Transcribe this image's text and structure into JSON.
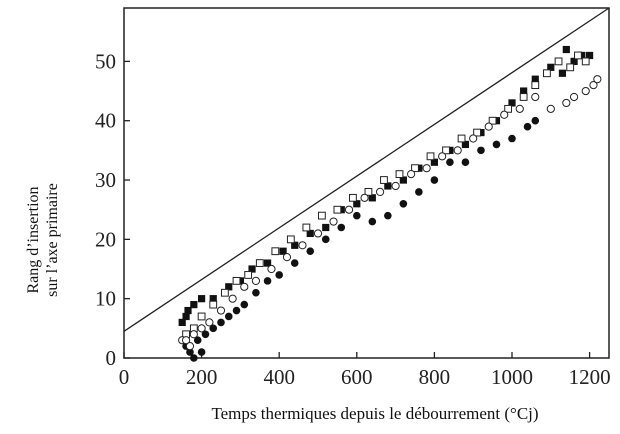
{
  "chart_data": {
    "type": "scatter",
    "xlabel": "Temps thermiques depuis le débourrement (°Cj)",
    "ylabel_lines": [
      "Rang d’insertion",
      "sur l’axe primaire"
    ],
    "xlim": [
      0,
      1250
    ],
    "ylim": [
      0,
      59
    ],
    "xticks": [
      "0",
      "200",
      "400",
      "600",
      "800",
      "1000",
      "1200"
    ],
    "yticks": [
      "0",
      "10",
      "20",
      "30",
      "40",
      "50"
    ],
    "grid": false,
    "line": {
      "x": [
        0,
        1250
      ],
      "y": [
        4.5,
        59
      ]
    },
    "series": [
      {
        "marker": "filled-square",
        "points": [
          [
            150,
            6
          ],
          [
            160,
            7
          ],
          [
            165,
            8
          ],
          [
            180,
            9
          ],
          [
            200,
            10
          ],
          [
            230,
            10
          ],
          [
            270,
            12
          ],
          [
            300,
            13
          ],
          [
            330,
            15
          ],
          [
            370,
            16
          ],
          [
            410,
            18
          ],
          [
            440,
            19
          ],
          [
            480,
            21
          ],
          [
            520,
            22
          ],
          [
            560,
            25
          ],
          [
            600,
            26
          ],
          [
            640,
            27
          ],
          [
            680,
            29
          ],
          [
            720,
            30
          ],
          [
            760,
            32
          ],
          [
            800,
            33
          ],
          [
            840,
            35
          ],
          [
            880,
            36
          ],
          [
            920,
            38
          ],
          [
            960,
            40
          ],
          [
            1000,
            43
          ],
          [
            1030,
            45
          ],
          [
            1060,
            47
          ],
          [
            1100,
            49
          ],
          [
            1130,
            48
          ],
          [
            1140,
            52
          ],
          [
            1160,
            50
          ],
          [
            1180,
            51
          ],
          [
            1200,
            51
          ]
        ]
      },
      {
        "marker": "filled-circle",
        "points": [
          [
            160,
            2
          ],
          [
            170,
            1
          ],
          [
            180,
            0
          ],
          [
            190,
            3
          ],
          [
            200,
            1
          ],
          [
            210,
            4
          ],
          [
            230,
            5
          ],
          [
            250,
            6
          ],
          [
            270,
            7
          ],
          [
            290,
            8
          ],
          [
            310,
            9
          ],
          [
            340,
            11
          ],
          [
            370,
            13
          ],
          [
            400,
            14
          ],
          [
            440,
            16
          ],
          [
            480,
            18
          ],
          [
            520,
            20
          ],
          [
            560,
            22
          ],
          [
            600,
            24
          ],
          [
            640,
            23
          ],
          [
            680,
            24
          ],
          [
            720,
            26
          ],
          [
            760,
            28
          ],
          [
            800,
            30
          ],
          [
            840,
            33
          ],
          [
            880,
            33
          ],
          [
            920,
            35
          ],
          [
            960,
            36
          ],
          [
            1000,
            37
          ],
          [
            1040,
            39
          ],
          [
            1060,
            40
          ]
        ]
      },
      {
        "marker": "open-square",
        "points": [
          [
            160,
            4
          ],
          [
            180,
            5
          ],
          [
            200,
            7
          ],
          [
            230,
            9
          ],
          [
            260,
            11
          ],
          [
            290,
            13
          ],
          [
            320,
            14
          ],
          [
            350,
            16
          ],
          [
            390,
            18
          ],
          [
            430,
            20
          ],
          [
            470,
            22
          ],
          [
            510,
            24
          ],
          [
            550,
            25
          ],
          [
            590,
            27
          ],
          [
            630,
            28
          ],
          [
            670,
            30
          ],
          [
            710,
            31
          ],
          [
            750,
            32
          ],
          [
            790,
            34
          ],
          [
            830,
            35
          ],
          [
            870,
            37
          ],
          [
            910,
            38
          ],
          [
            950,
            40
          ],
          [
            990,
            42
          ],
          [
            1030,
            44
          ],
          [
            1060,
            46
          ],
          [
            1090,
            48
          ],
          [
            1120,
            50
          ],
          [
            1150,
            49
          ],
          [
            1170,
            51
          ],
          [
            1190,
            50
          ]
        ]
      },
      {
        "marker": "open-circle",
        "points": [
          [
            150,
            3
          ],
          [
            160,
            3
          ],
          [
            170,
            2
          ],
          [
            180,
            4
          ],
          [
            200,
            5
          ],
          [
            220,
            6
          ],
          [
            250,
            8
          ],
          [
            280,
            10
          ],
          [
            310,
            12
          ],
          [
            340,
            13
          ],
          [
            380,
            15
          ],
          [
            420,
            17
          ],
          [
            460,
            19
          ],
          [
            500,
            21
          ],
          [
            540,
            23
          ],
          [
            580,
            25
          ],
          [
            620,
            27
          ],
          [
            660,
            28
          ],
          [
            700,
            29
          ],
          [
            740,
            31
          ],
          [
            780,
            32
          ],
          [
            820,
            34
          ],
          [
            860,
            35
          ],
          [
            900,
            37
          ],
          [
            940,
            39
          ],
          [
            980,
            41
          ],
          [
            1020,
            42
          ],
          [
            1060,
            44
          ],
          [
            1100,
            42
          ],
          [
            1140,
            43
          ],
          [
            1160,
            44
          ],
          [
            1190,
            45
          ],
          [
            1210,
            46
          ],
          [
            1220,
            47
          ]
        ]
      }
    ]
  }
}
